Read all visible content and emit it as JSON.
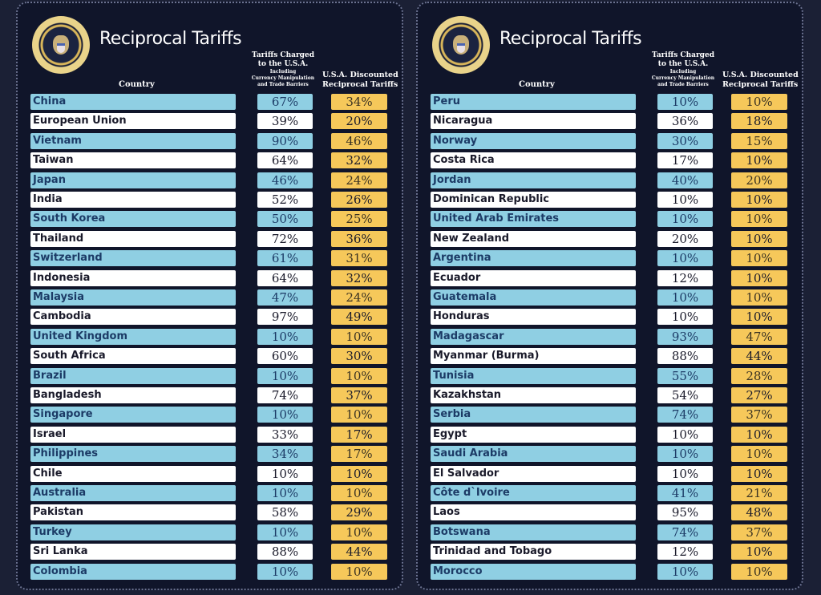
{
  "colors": {
    "background": "#10152a",
    "blue_row": "#8fcfe3",
    "white_row": "#ffffff",
    "reciprocal": "#f6c85a"
  },
  "panels": [
    {
      "title": "Reciprocal Tariffs",
      "seal_icon": "presidential-seal",
      "headers": {
        "country": "Country",
        "tariff_line1": "Tariffs Charged",
        "tariff_line2": "to the U.S.A.",
        "tariff_sub1": "Including",
        "tariff_sub2": "Currency Manipulation",
        "tariff_sub3": "and Trade Barriers",
        "recip_line1": "U.S.A. Discounted",
        "recip_line2": "Reciprocal Tariffs"
      },
      "rows": [
        {
          "country": "China",
          "tariff": "67%",
          "reciprocal": "34%"
        },
        {
          "country": "European Union",
          "tariff": "39%",
          "reciprocal": "20%"
        },
        {
          "country": "Vietnam",
          "tariff": "90%",
          "reciprocal": "46%"
        },
        {
          "country": "Taiwan",
          "tariff": "64%",
          "reciprocal": "32%"
        },
        {
          "country": "Japan",
          "tariff": "46%",
          "reciprocal": "24%"
        },
        {
          "country": "India",
          "tariff": "52%",
          "reciprocal": "26%"
        },
        {
          "country": "South Korea",
          "tariff": "50%",
          "reciprocal": "25%"
        },
        {
          "country": "Thailand",
          "tariff": "72%",
          "reciprocal": "36%"
        },
        {
          "country": "Switzerland",
          "tariff": "61%",
          "reciprocal": "31%"
        },
        {
          "country": "Indonesia",
          "tariff": "64%",
          "reciprocal": "32%"
        },
        {
          "country": "Malaysia",
          "tariff": "47%",
          "reciprocal": "24%"
        },
        {
          "country": "Cambodia",
          "tariff": "97%",
          "reciprocal": "49%"
        },
        {
          "country": "United Kingdom",
          "tariff": "10%",
          "reciprocal": "10%"
        },
        {
          "country": "South Africa",
          "tariff": "60%",
          "reciprocal": "30%"
        },
        {
          "country": "Brazil",
          "tariff": "10%",
          "reciprocal": "10%"
        },
        {
          "country": "Bangladesh",
          "tariff": "74%",
          "reciprocal": "37%"
        },
        {
          "country": "Singapore",
          "tariff": "10%",
          "reciprocal": "10%"
        },
        {
          "country": "Israel",
          "tariff": "33%",
          "reciprocal": "17%"
        },
        {
          "country": "Philippines",
          "tariff": "34%",
          "reciprocal": "17%"
        },
        {
          "country": "Chile",
          "tariff": "10%",
          "reciprocal": "10%"
        },
        {
          "country": "Australia",
          "tariff": "10%",
          "reciprocal": "10%"
        },
        {
          "country": "Pakistan",
          "tariff": "58%",
          "reciprocal": "29%"
        },
        {
          "country": "Turkey",
          "tariff": "10%",
          "reciprocal": "10%"
        },
        {
          "country": "Sri Lanka",
          "tariff": "88%",
          "reciprocal": "44%"
        },
        {
          "country": "Colombia",
          "tariff": "10%",
          "reciprocal": "10%"
        }
      ]
    },
    {
      "title": "Reciprocal Tariffs",
      "seal_icon": "presidential-seal",
      "headers": {
        "country": "Country",
        "tariff_line1": "Tariffs Charged",
        "tariff_line2": "to the U.S.A.",
        "tariff_sub1": "Including",
        "tariff_sub2": "Currency Manipulation",
        "tariff_sub3": "and Trade Barriers",
        "recip_line1": "U.S.A. Discounted",
        "recip_line2": "Reciprocal Tariffs"
      },
      "rows": [
        {
          "country": "Peru",
          "tariff": "10%",
          "reciprocal": "10%"
        },
        {
          "country": "Nicaragua",
          "tariff": "36%",
          "reciprocal": "18%"
        },
        {
          "country": "Norway",
          "tariff": "30%",
          "reciprocal": "15%"
        },
        {
          "country": "Costa Rica",
          "tariff": "17%",
          "reciprocal": "10%"
        },
        {
          "country": "Jordan",
          "tariff": "40%",
          "reciprocal": "20%"
        },
        {
          "country": "Dominican Republic",
          "tariff": "10%",
          "reciprocal": "10%"
        },
        {
          "country": "United Arab Emirates",
          "tariff": "10%",
          "reciprocal": "10%"
        },
        {
          "country": "New Zealand",
          "tariff": "20%",
          "reciprocal": "10%"
        },
        {
          "country": "Argentina",
          "tariff": "10%",
          "reciprocal": "10%"
        },
        {
          "country": "Ecuador",
          "tariff": "12%",
          "reciprocal": "10%"
        },
        {
          "country": "Guatemala",
          "tariff": "10%",
          "reciprocal": "10%"
        },
        {
          "country": "Honduras",
          "tariff": "10%",
          "reciprocal": "10%"
        },
        {
          "country": "Madagascar",
          "tariff": "93%",
          "reciprocal": "47%"
        },
        {
          "country": "Myanmar (Burma)",
          "tariff": "88%",
          "reciprocal": "44%"
        },
        {
          "country": "Tunisia",
          "tariff": "55%",
          "reciprocal": "28%"
        },
        {
          "country": "Kazakhstan",
          "tariff": "54%",
          "reciprocal": "27%"
        },
        {
          "country": "Serbia",
          "tariff": "74%",
          "reciprocal": "37%"
        },
        {
          "country": "Egypt",
          "tariff": "10%",
          "reciprocal": "10%"
        },
        {
          "country": "Saudi Arabia",
          "tariff": "10%",
          "reciprocal": "10%"
        },
        {
          "country": "El Salvador",
          "tariff": "10%",
          "reciprocal": "10%"
        },
        {
          "country": "Côte d`Ivoire",
          "tariff": "41%",
          "reciprocal": "21%"
        },
        {
          "country": "Laos",
          "tariff": "95%",
          "reciprocal": "48%"
        },
        {
          "country": "Botswana",
          "tariff": "74%",
          "reciprocal": "37%"
        },
        {
          "country": "Trinidad and Tobago",
          "tariff": "12%",
          "reciprocal": "10%"
        },
        {
          "country": "Morocco",
          "tariff": "10%",
          "reciprocal": "10%"
        }
      ]
    }
  ]
}
